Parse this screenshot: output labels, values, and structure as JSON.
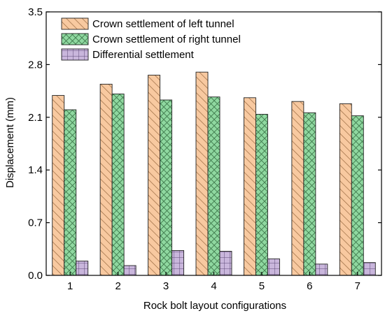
{
  "chart_data": {
    "type": "bar",
    "xlabel": "Rock bolt layout configurations",
    "ylabel": "Displacement (mm)",
    "ylim": [
      0.0,
      3.5
    ],
    "yticks": [
      "0.0",
      "0.7",
      "1.4",
      "2.1",
      "2.8",
      "3.5"
    ],
    "categories": [
      "1",
      "2",
      "3",
      "4",
      "5",
      "6",
      "7"
    ],
    "legend_position": "top-left",
    "series": [
      {
        "name": "Crown settlement of left tunnel",
        "values": [
          2.39,
          2.54,
          2.66,
          2.7,
          2.36,
          2.31,
          2.28
        ],
        "color": "#f8c9a0",
        "pattern": "diagonal"
      },
      {
        "name": "Crown settlement of right tunnel",
        "values": [
          2.2,
          2.41,
          2.33,
          2.37,
          2.14,
          2.16,
          2.12
        ],
        "color": "#8fd8a0",
        "pattern": "crosshatch"
      },
      {
        "name": "Differential settlement",
        "values": [
          0.19,
          0.13,
          0.33,
          0.32,
          0.22,
          0.15,
          0.17
        ],
        "color": "#c9b6dc",
        "pattern": "grid"
      }
    ]
  }
}
